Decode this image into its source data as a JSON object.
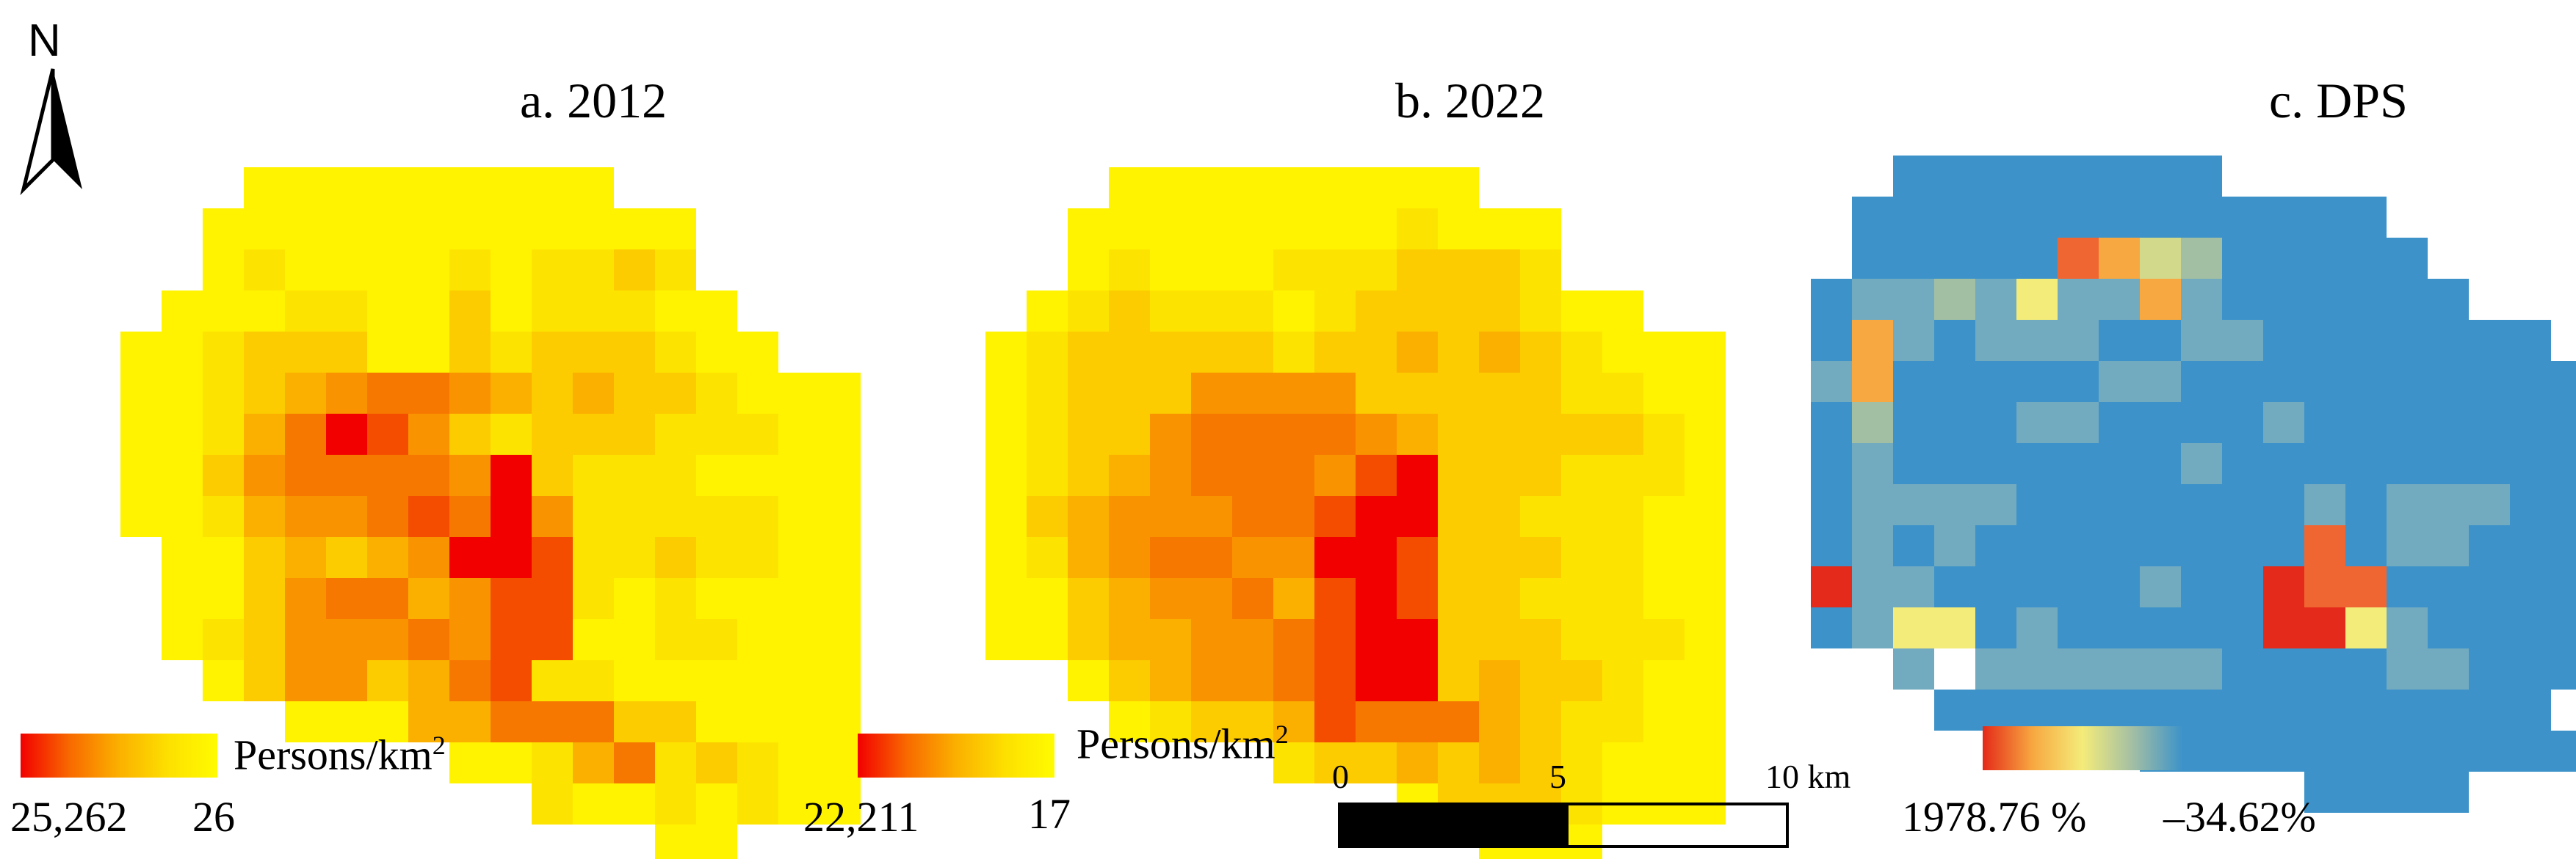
{
  "north_arrow": {
    "label": "N"
  },
  "panels": [
    {
      "title": "a. 2012",
      "legend_unit": "Persons/km",
      "legend_unit_sup": "2",
      "legend_max": "25,262",
      "legend_min": "26"
    },
    {
      "title": "b. 2022",
      "legend_unit": "Persons/km",
      "legend_unit_sup": "2",
      "legend_max": "22,211",
      "legend_min": "17"
    },
    {
      "title": "c. DPS",
      "legend_max": "1978.76 %",
      "legend_min": "–34.62%"
    }
  ],
  "scale_bar": {
    "labels": [
      "0",
      "5",
      "10 km"
    ]
  },
  "colors": {
    "density_ramp": [
      "#f20000",
      "#f65a00",
      "#fb9a00",
      "#fccb00",
      "#fff300"
    ],
    "dps_ramp": [
      "#e42a1a",
      "#f7a840",
      "#f4ec7a",
      "#a3bfa3",
      "#3d93c9"
    ],
    "outline_free": "#ffffff"
  },
  "chart_data": [
    {
      "type": "heatmap",
      "title": "a. 2012",
      "value_units": "Persons/km2",
      "scale": [
        26,
        25262
      ],
      "cell_class_legend": "0 = background (no data), 1..8 = density level from low (yellow) to high (red)",
      "rows": [
        "0000111111111000000",
        "0001111111111110000",
        "0001211112122320000",
        "0011122113122211000",
        "0112333113233321100",
        "0112345665434332111",
        "0112468753233322211",
        "0113566665832221111",
        "0112455676852222211",
        "0011343458872232211",
        "0011356645772121111",
        "0012355565771122111",
        "0001355346722111111",
        "0000011144666331111",
        "0000000001124623211",
        "0000000000021121211",
        "0000000000000011000"
      ]
    },
    {
      "type": "heatmap",
      "title": "b. 2022",
      "value_units": "Persons/km2",
      "scale": [
        17,
        22211
      ],
      "cell_class_legend": "0 = background (no data), 1..8 = density level from low (yellow) to high (red)",
      "rows": [
        "0000111111111000000",
        "0001111111121110000",
        "0001211122233320000",
        "0012322212333321100",
        "0123333323343432111",
        "0123335555333332211",
        "0123356666543333321",
        "0123456665783332221",
        "0134555667883322211",
        "0124566558873332211",
        "0113455647873322211",
        "0113445567883332221",
        "0001345567883433211",
        "0000123347666432211",
        "0000000023343432111",
        "0000000000013332111",
        "0000000000000111000"
      ]
    },
    {
      "type": "heatmap",
      "title": "c. DPS",
      "value_units": "%",
      "scale": [
        -34.62,
        1978.76
      ],
      "cell_class_legend": "0 = background (no data), 1 = lowest change (blue) .. 8 = highest change (red)",
      "rows": [
        "00111111110000000",
        "0111111111111100000",
        "0111117643111110000",
        "1223252262111111000",
        "1621222112211111110",
        "2611111221111111111",
        "1311122111121111111",
        "1211111112111111111",
        "1222211111112122211",
        "1212111111117122111",
        "8221111121187711111",
        "1255121111188521111",
        "0020222222111122111",
        "0001111111111111110",
        "0000000011111111111",
        "0000000000001111000"
      ]
    }
  ]
}
